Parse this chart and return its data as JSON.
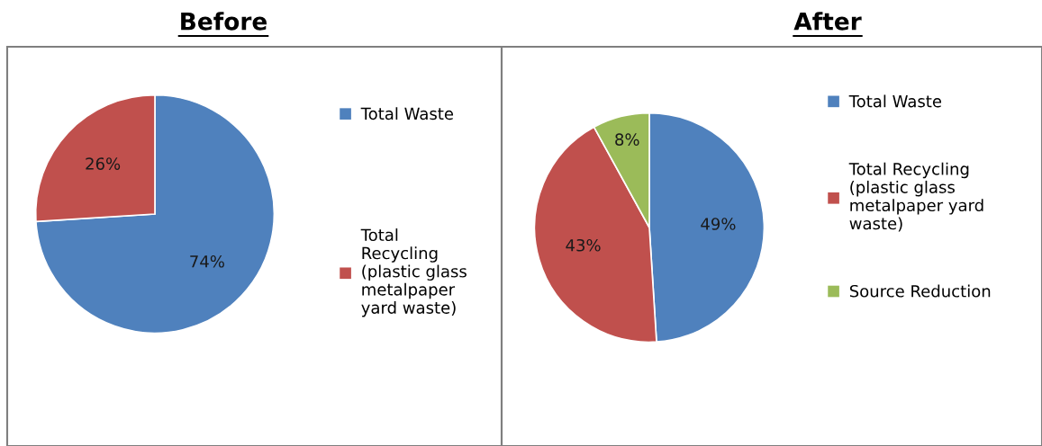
{
  "chart_data": [
    {
      "type": "pie",
      "title": "Before",
      "categories": [
        "Total Waste",
        "Total Recycling (plastic glass metalpaper yard waste)"
      ],
      "values": [
        74,
        26
      ],
      "colors": [
        "#4f81bd",
        "#c0504d"
      ],
      "value_labels": [
        "74%",
        "26%"
      ],
      "legend": "right"
    },
    {
      "type": "pie",
      "title": "After",
      "categories": [
        "Total Waste",
        "Total Recycling (plastic glass metalpaper yard waste)",
        "Source Reduction"
      ],
      "values": [
        49,
        43,
        8
      ],
      "colors": [
        "#4f81bd",
        "#c0504d",
        "#9bbb59"
      ],
      "value_labels": [
        "49%",
        "43%",
        "8%"
      ],
      "legend": "right"
    }
  ]
}
